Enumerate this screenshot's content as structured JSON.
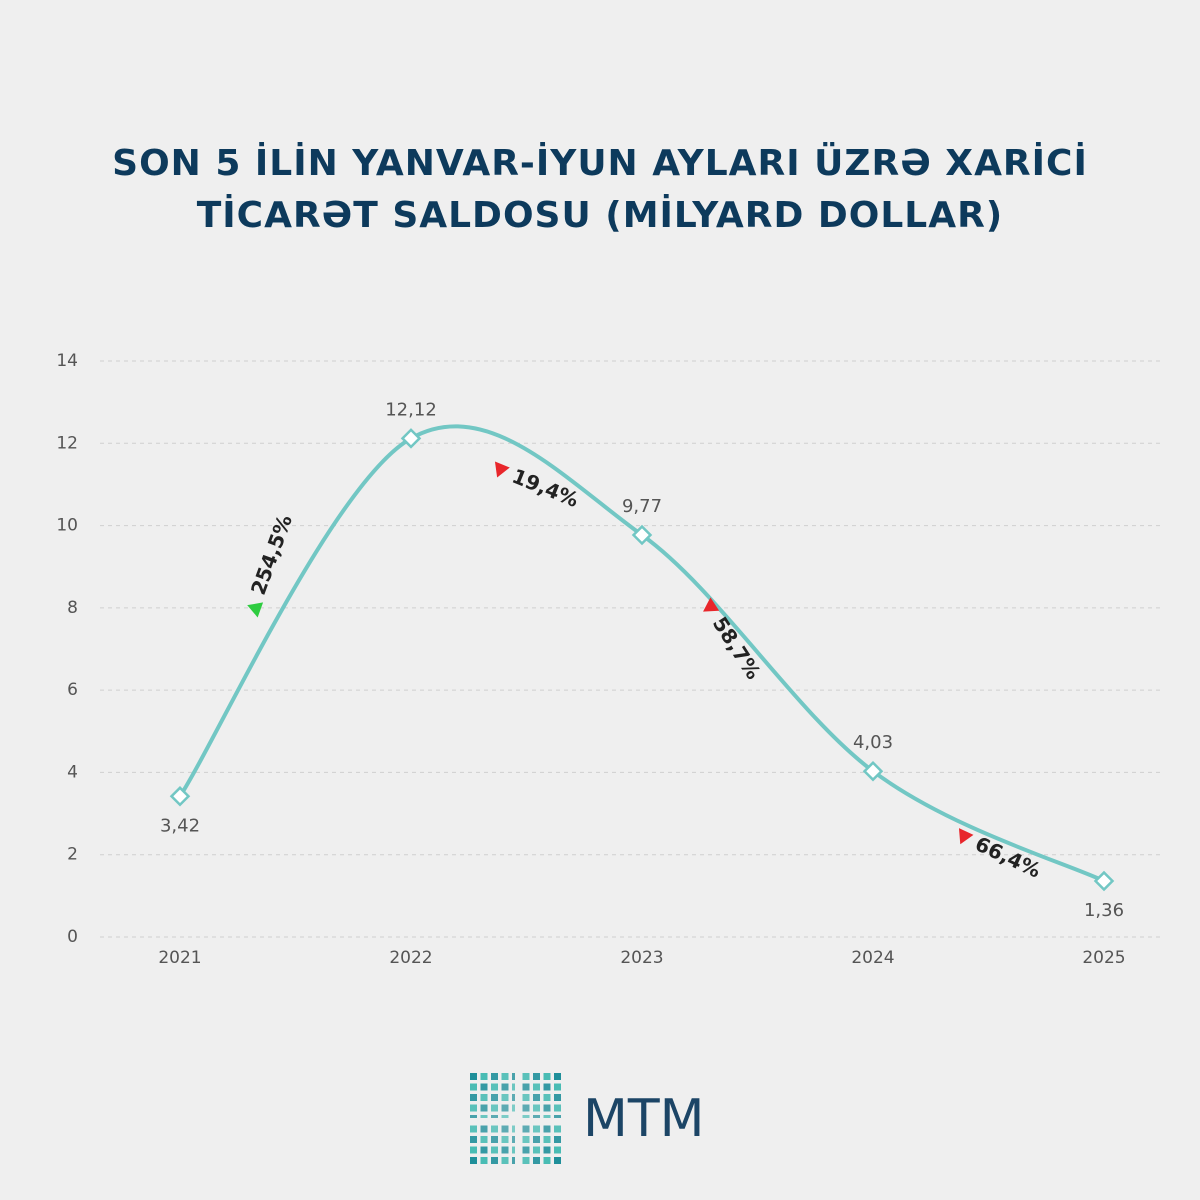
{
  "chart_data": {
    "type": "line",
    "title": "SON 5 İLİN YANVAR-İYUN AYLARI ÜZRƏ XARİCİ TİCARƏT SALDOSU (MİLYARD DOLLAR)",
    "categories": [
      "2021",
      "2022",
      "2023",
      "2024",
      "2025"
    ],
    "values": [
      3.42,
      12.12,
      9.77,
      4.03,
      1.36
    ],
    "value_labels": [
      "3,42",
      "12,12",
      "9,77",
      "4,03",
      "1,36"
    ],
    "color": "#72c7c4",
    "ylim": [
      0,
      14
    ],
    "yticks": [
      0,
      2,
      4,
      6,
      8,
      10,
      12,
      14
    ],
    "grid": true,
    "annotations": [
      {
        "text": "254,5%",
        "direction": "up"
      },
      {
        "text": "19,4%",
        "direction": "down"
      },
      {
        "text": "58,7%",
        "direction": "down"
      },
      {
        "text": "66,4%",
        "direction": "down"
      }
    ],
    "up_color": "#2ecc40",
    "down_color": "#e8262b",
    "logo": "MTM"
  }
}
